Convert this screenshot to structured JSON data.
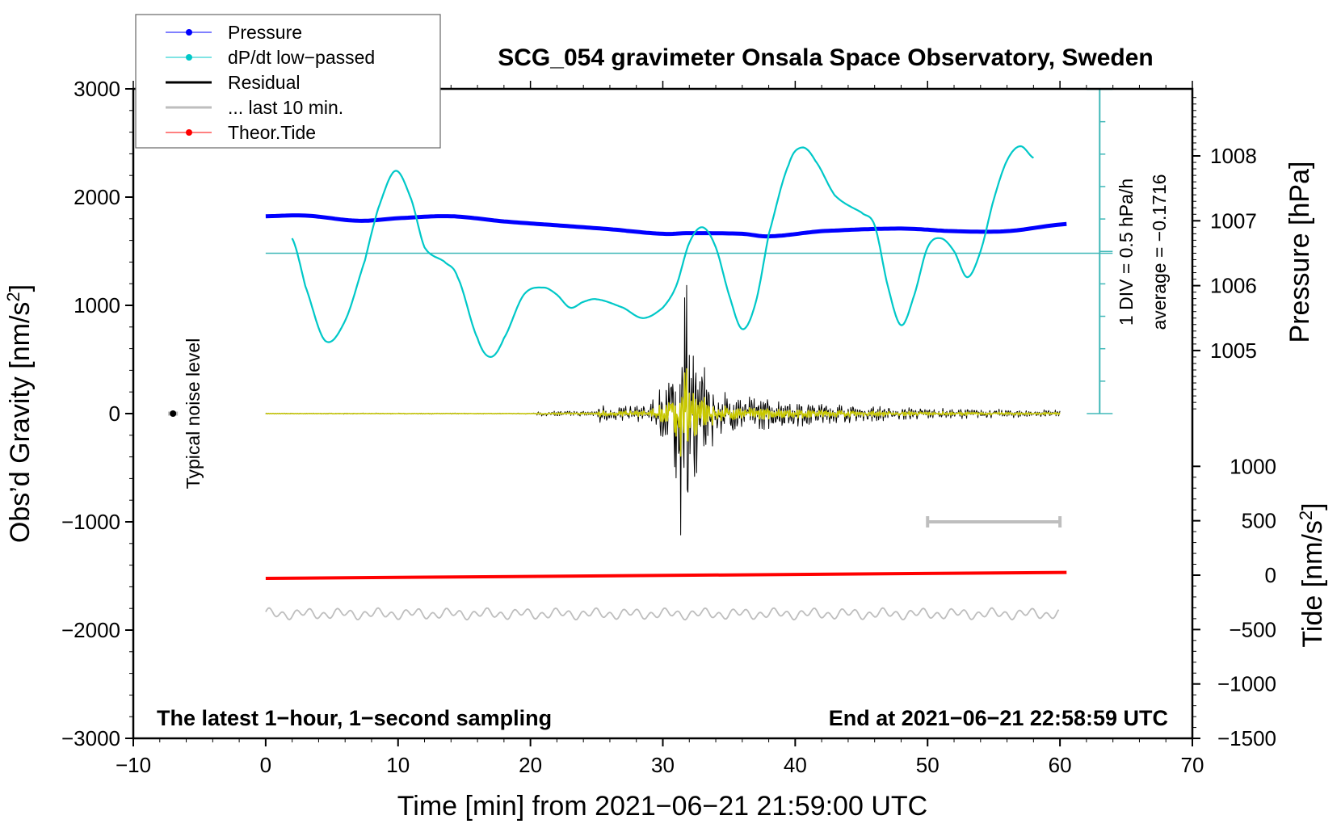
{
  "chart_data": {
    "type": "line",
    "title": "SCG_054 gravimeter Onsala Space Observatory, Sweden",
    "xlabel": "Time [min] from 2021−06−21 21:59:00 UTC",
    "ylabel_left": "Obs’d Gravity [nm/s²]",
    "ylabel_left_base": "Obs’d Gravity [nm/s",
    "ylabel_right_pressure": "Pressure [hPa]",
    "ylabel_right_tide": "Tide [nm/s",
    "xlim": [
      -10,
      70
    ],
    "ylim_left": [
      -3000,
      3000
    ],
    "ylim_pressure": [
      1004.0,
      1008.9
    ],
    "ylim_tide": [
      -1500,
      1500
    ],
    "x_ticks": [
      "−10",
      "0",
      "10",
      "20",
      "30",
      "40",
      "50",
      "60",
      "70"
    ],
    "x_tick_values": [
      -10,
      0,
      10,
      20,
      30,
      40,
      50,
      60,
      70
    ],
    "y_left_ticks": [
      "3000",
      "2000",
      "1000",
      "0",
      "−1000",
      "−2000",
      "−3000"
    ],
    "y_left_tick_values": [
      3000,
      2000,
      1000,
      0,
      -1000,
      -2000,
      -3000
    ],
    "pressure_ticks": [
      "1008",
      "1007",
      "1006",
      "1005"
    ],
    "pressure_tick_values": [
      1008,
      1007,
      1006,
      1005
    ],
    "tide_ticks": [
      "1000",
      "500",
      "0",
      "−500",
      "−1000",
      "−1500"
    ],
    "tide_tick_values": [
      1000,
      500,
      0,
      -500,
      -1000,
      -1500
    ],
    "annotation_left": "The latest 1−hour, 1−second sampling",
    "annotation_right": "End at 2021−06−21 22:58:59 UTC",
    "noise_label": "Typical noise level",
    "div_label": "1 DIV = 0.5 hPa/h",
    "average_label": "average = −0.1716",
    "legend": [
      {
        "label": "Pressure",
        "color": "#0000ff"
      },
      {
        "label": "dP/dt low−passed",
        "color": "#00c8c8"
      },
      {
        "label": "Residual",
        "color": "#000000"
      },
      {
        "label": "... last 10 min.",
        "color": "#bebebe"
      },
      {
        "label": "Theor.Tide",
        "color": "#ff0000"
      }
    ],
    "legend_position": "top-left",
    "series": [
      {
        "name": "Pressure",
        "units": "hPa",
        "color": "#0000ff",
        "x": [
          0,
          3,
          7,
          10,
          14,
          18,
          22,
          26,
          30,
          32,
          36,
          38,
          42,
          48,
          52,
          56,
          60.5
        ],
        "y": [
          1007.07,
          1007.08,
          1007.0,
          1007.04,
          1007.07,
          1006.99,
          1006.93,
          1006.87,
          1006.8,
          1006.81,
          1006.8,
          1006.76,
          1006.84,
          1006.88,
          1006.84,
          1006.84,
          1006.95
        ]
      },
      {
        "name": "dP/dt low-passed",
        "units": "hPa/h",
        "color": "#00c8c8",
        "x": [
          2,
          3,
          4.5,
          6,
          7.5,
          8.5,
          9.8,
          11,
          12,
          13.5,
          14.5,
          16,
          17,
          18,
          19.5,
          21,
          22,
          23,
          24,
          25,
          27,
          28.5,
          30,
          31,
          32,
          33,
          34,
          35,
          36,
          37,
          38,
          39.5,
          40.5,
          41.5,
          43,
          45,
          46,
          47,
          48,
          49,
          50,
          51,
          52,
          53,
          54,
          55,
          56,
          57,
          58
        ],
        "y": [
          0.23,
          -0.51,
          -1.35,
          -1.04,
          -0.11,
          0.69,
          1.27,
          0.83,
          0.09,
          -0.13,
          -0.37,
          -1.31,
          -1.6,
          -1.31,
          -0.64,
          -0.53,
          -0.64,
          -0.84,
          -0.75,
          -0.71,
          -0.84,
          -1.0,
          -0.84,
          -0.51,
          0.16,
          0.4,
          0.09,
          -0.64,
          -1.17,
          -0.77,
          0.29,
          1.36,
          1.63,
          1.43,
          0.89,
          0.63,
          0.43,
          -0.51,
          -1.11,
          -0.64,
          0.09,
          0.23,
          0.03,
          -0.37,
          0.03,
          0.83,
          1.43,
          1.65,
          1.47
        ]
      },
      {
        "name": "Residual (envelope)",
        "units": "nm/s2",
        "color": "#000000",
        "x": [
          0,
          20.4,
          20.6,
          24.8,
          25.2,
          26,
          29,
          29.5,
          30.5,
          31,
          31.5,
          32,
          33,
          34,
          35,
          37,
          40,
          45,
          50,
          60
        ],
        "y": [
          4,
          4,
          20,
          20,
          80,
          55,
          60,
          150,
          400,
          700,
          1500,
          600,
          400,
          250,
          150,
          120,
          100,
          60,
          40,
          25
        ]
      },
      {
        "name": "Last 10 min (overlay)",
        "units": "nm/s2",
        "color": "#c8c800",
        "amplitude_fraction": 0.35
      },
      {
        "name": "Residual offset trace",
        "units": "nm/s2",
        "color": "#bebebe",
        "offset": -1850,
        "amplitude": 55
      },
      {
        "name": "Theor.Tide",
        "units": "nm/s2",
        "color": "#ff0000",
        "x": [
          0,
          60.5
        ],
        "y": [
          -30,
          25
        ]
      }
    ],
    "scale_bar": {
      "x": [
        50,
        60
      ],
      "y": -1000,
      "color": "#bebebe"
    },
    "noise_marker": {
      "x": -7,
      "y": 0
    },
    "dpdt_zero_pressure": 1006.5
  }
}
